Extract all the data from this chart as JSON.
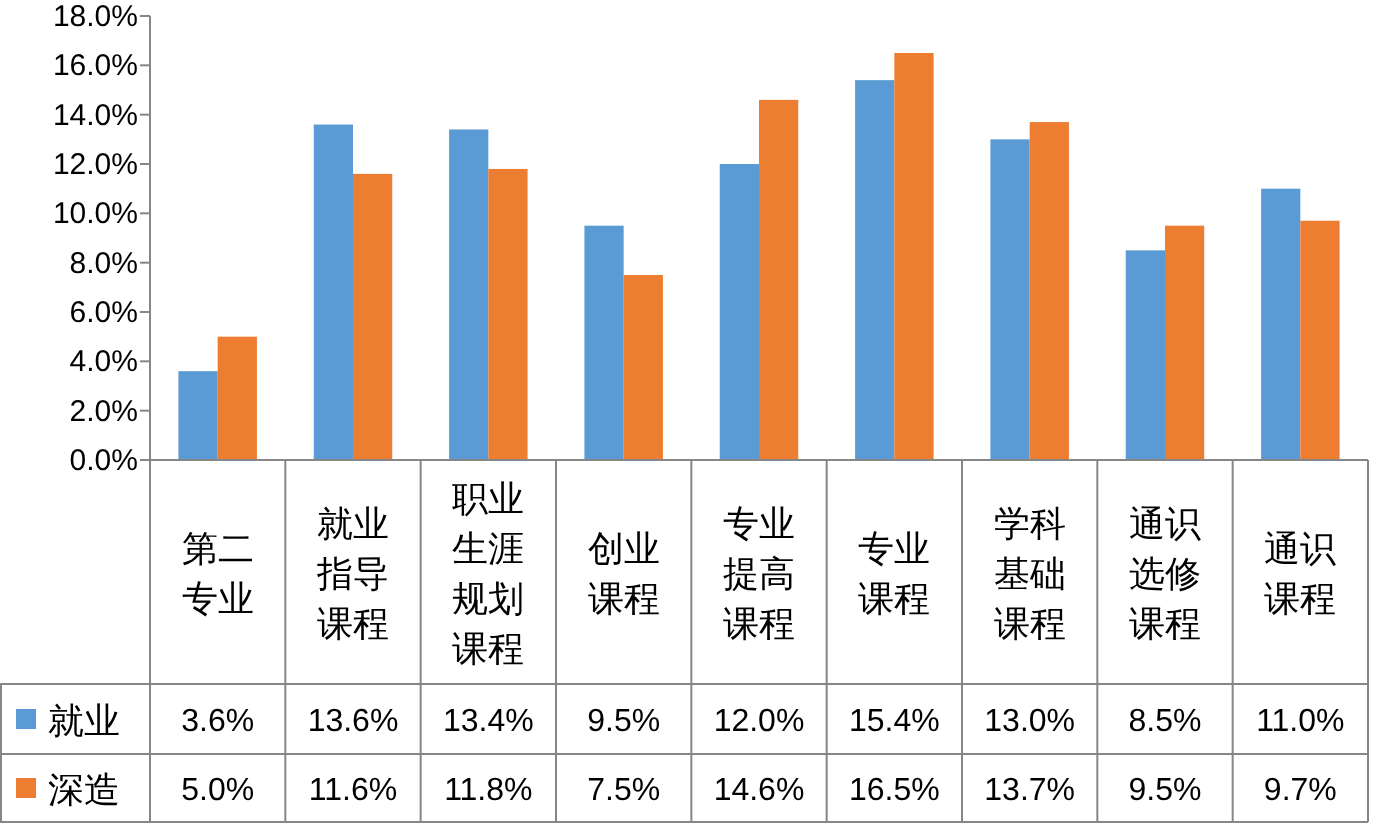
{
  "chart_data": {
    "type": "bar",
    "categories": [
      "第二专业",
      "就业指导课程",
      "职业生涯规划课程",
      "创业课程",
      "专业提高课程",
      "专业课程",
      "学科基础课程",
      "通识选修课程",
      "通识课程"
    ],
    "series": [
      {
        "name": "就业",
        "color": "#5b9bd5",
        "values": [
          3.6,
          13.6,
          13.4,
          9.5,
          12.0,
          15.4,
          13.0,
          8.5,
          11.0
        ],
        "value_labels": [
          "3.6%",
          "13.6%",
          "13.4%",
          "9.5%",
          "12.0%",
          "15.4%",
          "13.0%",
          "8.5%",
          "11.0%"
        ]
      },
      {
        "name": "深造",
        "color": "#ed7d31",
        "values": [
          5.0,
          11.6,
          11.8,
          7.5,
          14.6,
          16.5,
          13.7,
          9.5,
          9.7
        ],
        "value_labels": [
          "5.0%",
          "11.6%",
          "11.8%",
          "7.5%",
          "14.6%",
          "16.5%",
          "13.7%",
          "9.5%",
          "9.7%"
        ]
      }
    ],
    "ylim": [
      0,
      18
    ],
    "yticks": [
      {
        "value": 0,
        "label": "0.0%"
      },
      {
        "value": 2,
        "label": "2.0%"
      },
      {
        "value": 4,
        "label": "4.0%"
      },
      {
        "value": 6,
        "label": "6.0%"
      },
      {
        "value": 8,
        "label": "8.0%"
      },
      {
        "value": 10,
        "label": "10.0%"
      },
      {
        "value": 12,
        "label": "12.0%"
      },
      {
        "value": 14,
        "label": "14.0%"
      },
      {
        "value": 16,
        "label": "16.0%"
      },
      {
        "value": 18,
        "label": "18.0%"
      }
    ],
    "legend": "bottom"
  }
}
